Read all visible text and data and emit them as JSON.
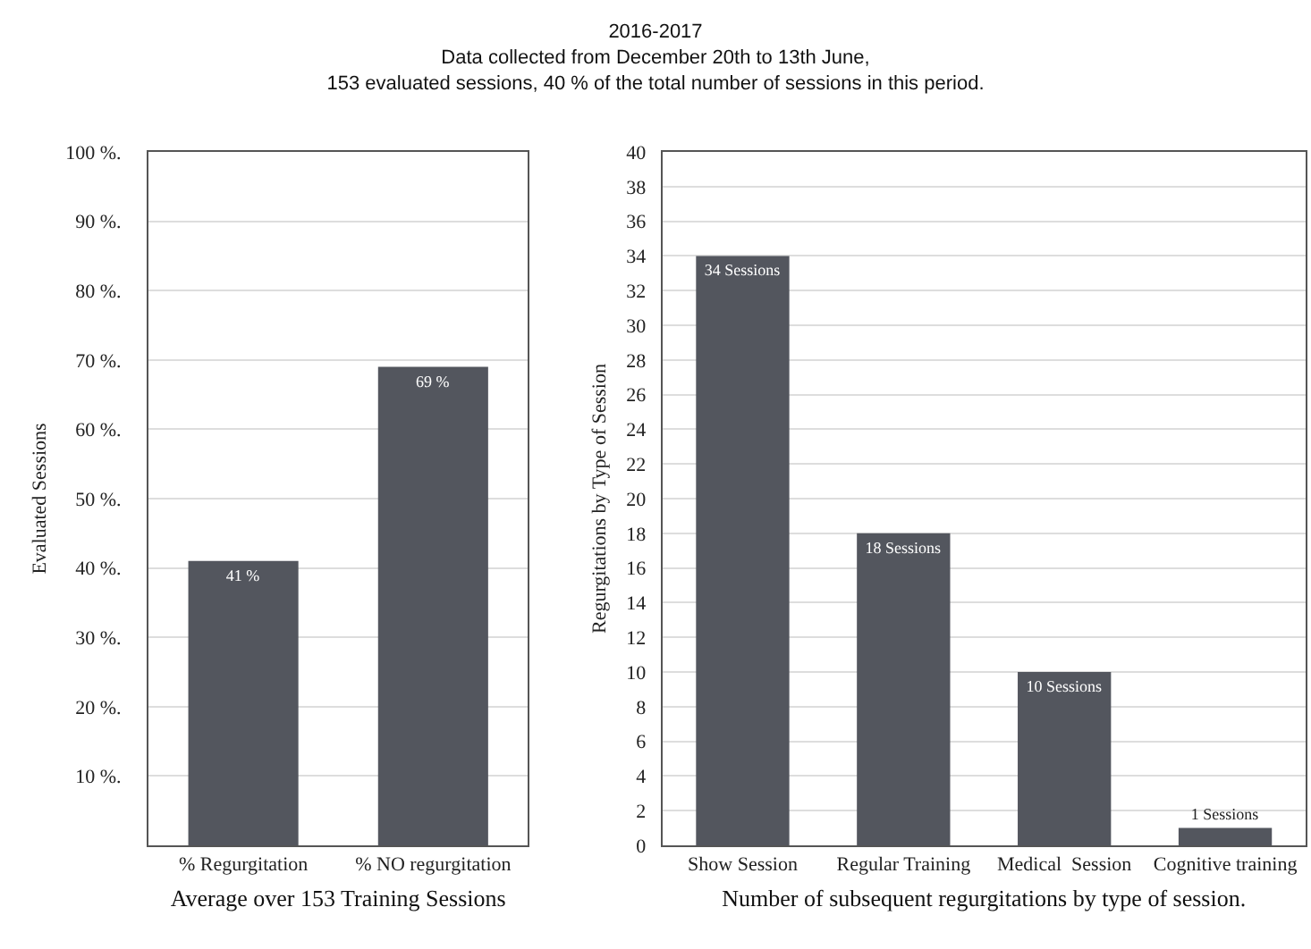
{
  "chart_data": [
    {
      "type": "bar",
      "title": "2016-2017\nData collected from December 20th to 13th June,\n153 evaluated sessions, 40 % of the total number of sessions in this period.",
      "xlabel": "Average over 153 Training Sessions",
      "ylabel": "Evaluated Sessions",
      "categories": [
        "% Regurgitation",
        "% NO regurgitation"
      ],
      "values": [
        41,
        69
      ],
      "value_labels": [
        "41 %",
        "69 %"
      ],
      "color": "#53565e",
      "ylim": [
        0,
        100
      ],
      "yticks": [
        {
          "value": 10,
          "label": "10 %."
        },
        {
          "value": 20,
          "label": "20 %."
        },
        {
          "value": 30,
          "label": "30 %."
        },
        {
          "value": 40,
          "label": "40 %."
        },
        {
          "value": 50,
          "label": "50 %."
        },
        {
          "value": 60,
          "label": "60 %."
        },
        {
          "value": 70,
          "label": "70 %."
        },
        {
          "value": 80,
          "label": "80 %."
        },
        {
          "value": 90,
          "label": "90 %."
        },
        {
          "value": 100,
          "label": "100 %."
        }
      ],
      "grid": "y"
    },
    {
      "type": "bar",
      "xlabel": "Number of subsequent regurgitations by type of session.",
      "ylabel": "Regurgitations by Type of Session",
      "categories": [
        "Show Session",
        "Regular Training",
        "Medical  Session",
        "Cognitive training"
      ],
      "values": [
        34,
        18,
        10,
        1
      ],
      "value_labels": [
        "34 Sessions",
        "18 Sessions",
        "10 Sessions",
        "1 Sessions"
      ],
      "color": "#53565e",
      "ylim": [
        0,
        40
      ],
      "yticks": [
        0,
        2,
        4,
        6,
        8,
        10,
        12,
        14,
        16,
        18,
        20,
        22,
        24,
        26,
        28,
        30,
        32,
        34,
        36,
        38,
        40
      ],
      "grid": "y"
    }
  ]
}
